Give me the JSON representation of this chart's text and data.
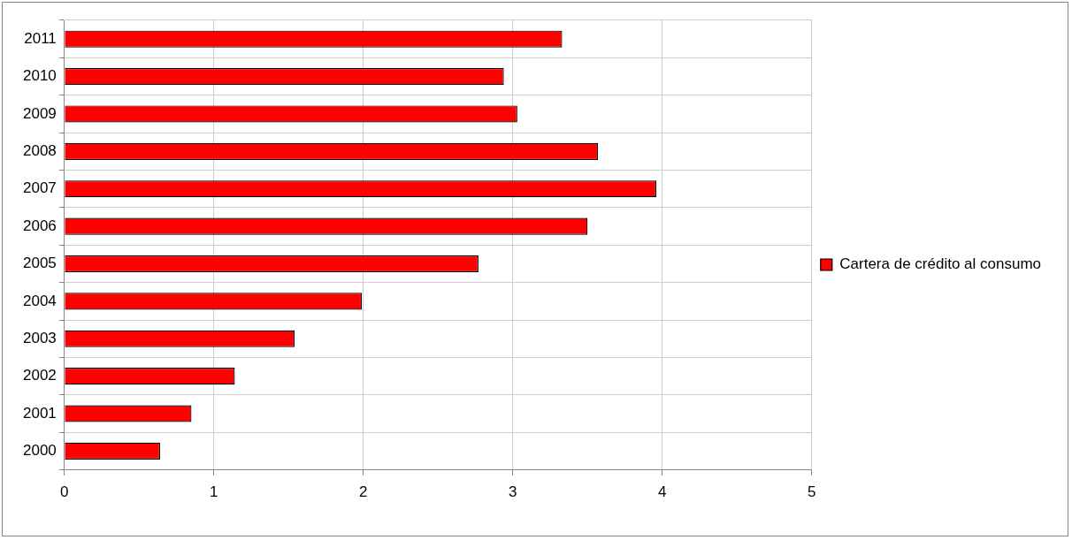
{
  "chart_data": {
    "type": "bar",
    "orientation": "horizontal",
    "categories": [
      "2011",
      "2010",
      "2009",
      "2008",
      "2007",
      "2006",
      "2005",
      "2004",
      "2003",
      "2002",
      "2001",
      "2000"
    ],
    "series": [
      {
        "name": "Cartera de crédito al consumo",
        "color": "#ff0000",
        "values": [
          3.33,
          2.94,
          3.03,
          3.57,
          3.96,
          3.5,
          2.77,
          1.99,
          1.54,
          1.14,
          0.85,
          0.64
        ]
      }
    ],
    "xlim": [
      0,
      5
    ],
    "xticks": [
      0,
      1,
      2,
      3,
      4,
      5
    ],
    "grid": true,
    "legend": "right"
  }
}
